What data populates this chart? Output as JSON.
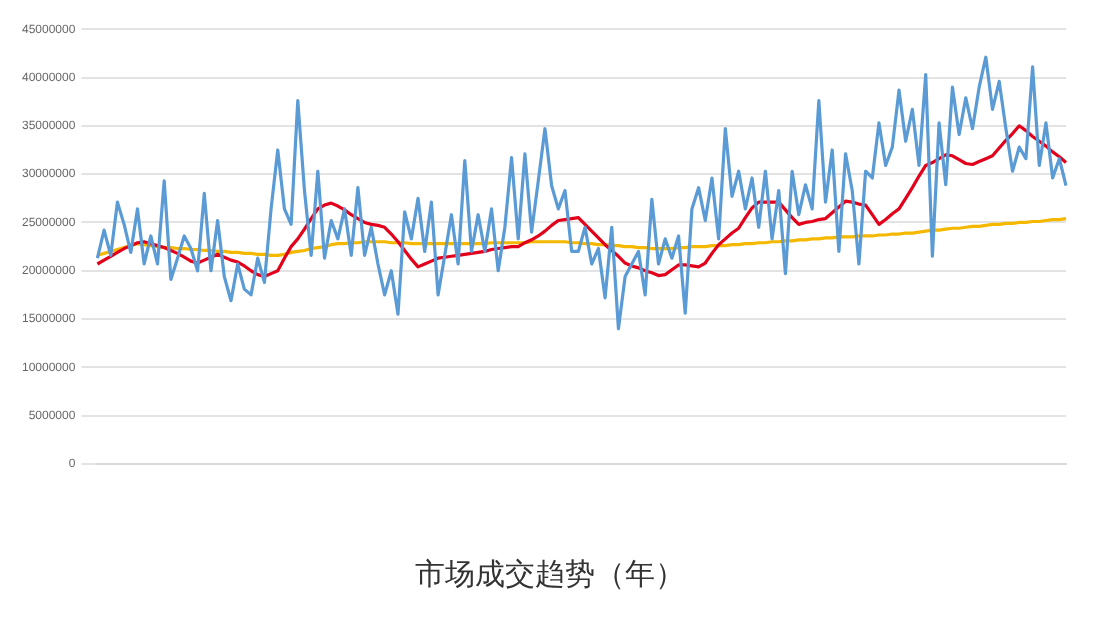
{
  "chart_data": {
    "type": "line",
    "title": "市场成交趋势（年）",
    "categories": [
      null,
      null,
      null,
      null,
      null,
      null,
      null,
      null,
      null,
      null,
      null,
      null,
      null,
      null,
      null,
      null,
      null,
      null,
      null,
      null,
      null,
      null,
      null,
      null,
      null,
      null,
      null,
      null,
      null,
      null,
      null,
      null,
      null,
      null,
      null,
      null,
      null,
      null,
      null,
      null,
      null,
      null,
      null,
      null,
      null,
      null,
      null,
      null,
      null,
      null,
      null,
      null,
      null,
      null,
      null,
      null,
      null,
      null,
      null,
      null,
      null,
      null,
      null,
      null,
      null,
      null,
      null,
      null,
      null,
      null,
      null,
      null,
      null,
      null,
      null,
      null,
      null,
      null,
      null,
      null,
      null,
      null,
      null,
      null,
      null,
      null,
      null,
      null,
      null,
      null,
      null,
      null,
      null,
      null,
      null,
      null,
      null,
      null,
      null,
      null,
      null,
      null,
      null,
      null,
      null,
      null,
      null,
      null,
      null,
      null,
      null,
      null,
      null,
      null,
      null,
      null,
      null,
      null,
      null,
      null,
      null,
      null,
      null,
      null,
      null,
      null,
      null,
      null,
      null,
      null,
      null,
      null,
      null,
      null,
      null,
      null,
      null,
      null,
      null,
      null,
      null,
      null,
      null,
      null,
      null,
      null
    ],
    "series": [
      {
        "color": "#5b9bd5",
        "values": [
          21300000,
          24200000,
          21600000,
          27100000,
          24800000,
          21900000,
          26400000,
          20700000,
          23600000,
          20700000,
          29300000,
          19100000,
          21300000,
          23600000,
          22300000,
          20000000,
          28000000,
          20000000,
          25200000,
          19400000,
          16900000,
          20700000,
          18100000,
          17500000,
          21300000,
          18800000,
          26400000,
          32500000,
          26400000,
          24800000,
          37600000,
          28300000,
          21600000,
          30300000,
          21300000,
          25200000,
          23300000,
          26400000,
          21600000,
          28600000,
          21600000,
          24500000,
          20700000,
          17500000,
          20000000,
          15500000,
          26100000,
          23300000,
          27500000,
          22000000,
          27100000,
          17500000,
          21600000,
          25800000,
          20700000,
          31400000,
          22000000,
          25800000,
          22000000,
          26400000,
          20000000,
          24500000,
          31700000,
          23300000,
          32100000,
          24000000,
          29300000,
          34700000,
          28800000,
          26400000,
          28300000,
          22000000,
          22000000,
          24500000,
          20700000,
          22300000,
          17200000,
          24500000,
          14000000,
          19400000,
          20700000,
          22000000,
          17500000,
          27400000,
          20700000,
          23300000,
          21300000,
          23600000,
          15600000,
          26400000,
          28600000,
          25200000,
          29600000,
          23300000,
          34700000,
          27700000,
          30300000,
          26400000,
          29600000,
          24500000,
          30300000,
          23300000,
          28300000,
          19700000,
          30300000,
          25800000,
          28900000,
          26400000,
          37600000,
          27100000,
          32500000,
          22000000,
          32100000,
          28300000,
          20700000,
          30300000,
          29600000,
          35300000,
          30900000,
          32800000,
          38700000,
          33400000,
          36700000,
          30900000,
          40300000,
          21500000,
          35300000,
          28900000,
          39000000,
          34100000,
          37900000,
          34700000,
          39000000,
          42100000,
          36700000,
          39600000,
          34700000,
          30300000,
          32800000,
          31600000,
          41100000,
          30900000,
          35300000,
          29600000,
          31600000,
          28800000
        ]
      },
      {
        "color": "#e3001b",
        "values": [
          20700000,
          21100000,
          21500000,
          21900000,
          22300000,
          22600000,
          22900000,
          23000000,
          22800000,
          22600000,
          22400000,
          22100000,
          21800000,
          21400000,
          21000000,
          20800000,
          21100000,
          21400000,
          21700000,
          21400000,
          21100000,
          20900000,
          20500000,
          20000000,
          19600000,
          19400000,
          19700000,
          20000000,
          21300000,
          22500000,
          23300000,
          24300000,
          25400000,
          26400000,
          26800000,
          27000000,
          26700000,
          26300000,
          25800000,
          25400000,
          25000000,
          24800000,
          24700000,
          24500000,
          23800000,
          23000000,
          22100000,
          21200000,
          20400000,
          20700000,
          21000000,
          21300000,
          21400000,
          21500000,
          21600000,
          21700000,
          21800000,
          21900000,
          22000000,
          22200000,
          22300000,
          22400000,
          22500000,
          22500000,
          22900000,
          23200000,
          23600000,
          24100000,
          24700000,
          25200000,
          25300000,
          25400000,
          25500000,
          24800000,
          24100000,
          23400000,
          22700000,
          22100000,
          21500000,
          20800000,
          20500000,
          20300000,
          20000000,
          19800000,
          19500000,
          19600000,
          20100000,
          20600000,
          20600000,
          20500000,
          20400000,
          20800000,
          21800000,
          22700000,
          23300000,
          23900000,
          24400000,
          25500000,
          26500000,
          27100000,
          27100000,
          27100000,
          27100000,
          26300000,
          25500000,
          24800000,
          25000000,
          25100000,
          25300000,
          25400000,
          26000000,
          26600000,
          27200000,
          27100000,
          26900000,
          26800000,
          25800000,
          24800000,
          25300000,
          25900000,
          26400000,
          27500000,
          28600000,
          29800000,
          30900000,
          31200000,
          31600000,
          32000000,
          31900000,
          31500000,
          31100000,
          31000000,
          31300000,
          31600000,
          31900000,
          32700000,
          33500000,
          34200000,
          35000000,
          34500000,
          33900000,
          33400000,
          32900000,
          32300000,
          31800000,
          31200000
        ]
      },
      {
        "color": "#f5b800",
        "values": [
          21600000,
          21800000,
          22000000,
          22200000,
          22400000,
          22600000,
          22800000,
          22700000,
          22600000,
          22500000,
          22400000,
          22400000,
          22300000,
          22300000,
          22200000,
          22200000,
          22100000,
          22100000,
          22000000,
          22000000,
          21900000,
          21900000,
          21800000,
          21800000,
          21700000,
          21700000,
          21600000,
          21600000,
          21700000,
          21900000,
          22000000,
          22100000,
          22300000,
          22400000,
          22500000,
          22700000,
          22800000,
          22800000,
          22900000,
          22900000,
          23000000,
          23000000,
          23000000,
          23000000,
          22900000,
          22900000,
          22900000,
          22800000,
          22800000,
          22800000,
          22800000,
          22800000,
          22800000,
          22800000,
          22800000,
          22800000,
          22800000,
          22800000,
          22800000,
          22900000,
          22900000,
          22900000,
          22900000,
          22900000,
          22900000,
          23000000,
          23000000,
          23000000,
          23000000,
          23000000,
          23000000,
          22900000,
          22900000,
          22800000,
          22800000,
          22700000,
          22700000,
          22600000,
          22600000,
          22500000,
          22500000,
          22400000,
          22400000,
          22300000,
          22300000,
          22300000,
          22300000,
          22400000,
          22400000,
          22500000,
          22500000,
          22500000,
          22600000,
          22600000,
          22600000,
          22700000,
          22700000,
          22800000,
          22800000,
          22900000,
          22900000,
          23000000,
          23000000,
          23100000,
          23100000,
          23200000,
          23200000,
          23300000,
          23300000,
          23400000,
          23400000,
          23500000,
          23500000,
          23500000,
          23600000,
          23600000,
          23600000,
          23700000,
          23700000,
          23800000,
          23800000,
          23900000,
          23900000,
          24000000,
          24100000,
          24200000,
          24200000,
          24300000,
          24400000,
          24400000,
          24500000,
          24600000,
          24600000,
          24700000,
          24800000,
          24800000,
          24900000,
          24900000,
          25000000,
          25000000,
          25100000,
          25100000,
          25200000,
          25300000,
          25300000,
          25400000
        ]
      }
    ],
    "ylim": [
      0,
      45000000
    ],
    "yticks": [
      0,
      5000000,
      10000000,
      15000000,
      20000000,
      25000000,
      30000000,
      35000000,
      40000000,
      45000000
    ],
    "grid": "y",
    "legend": false,
    "marker": "none",
    "line_style": "solid"
  }
}
